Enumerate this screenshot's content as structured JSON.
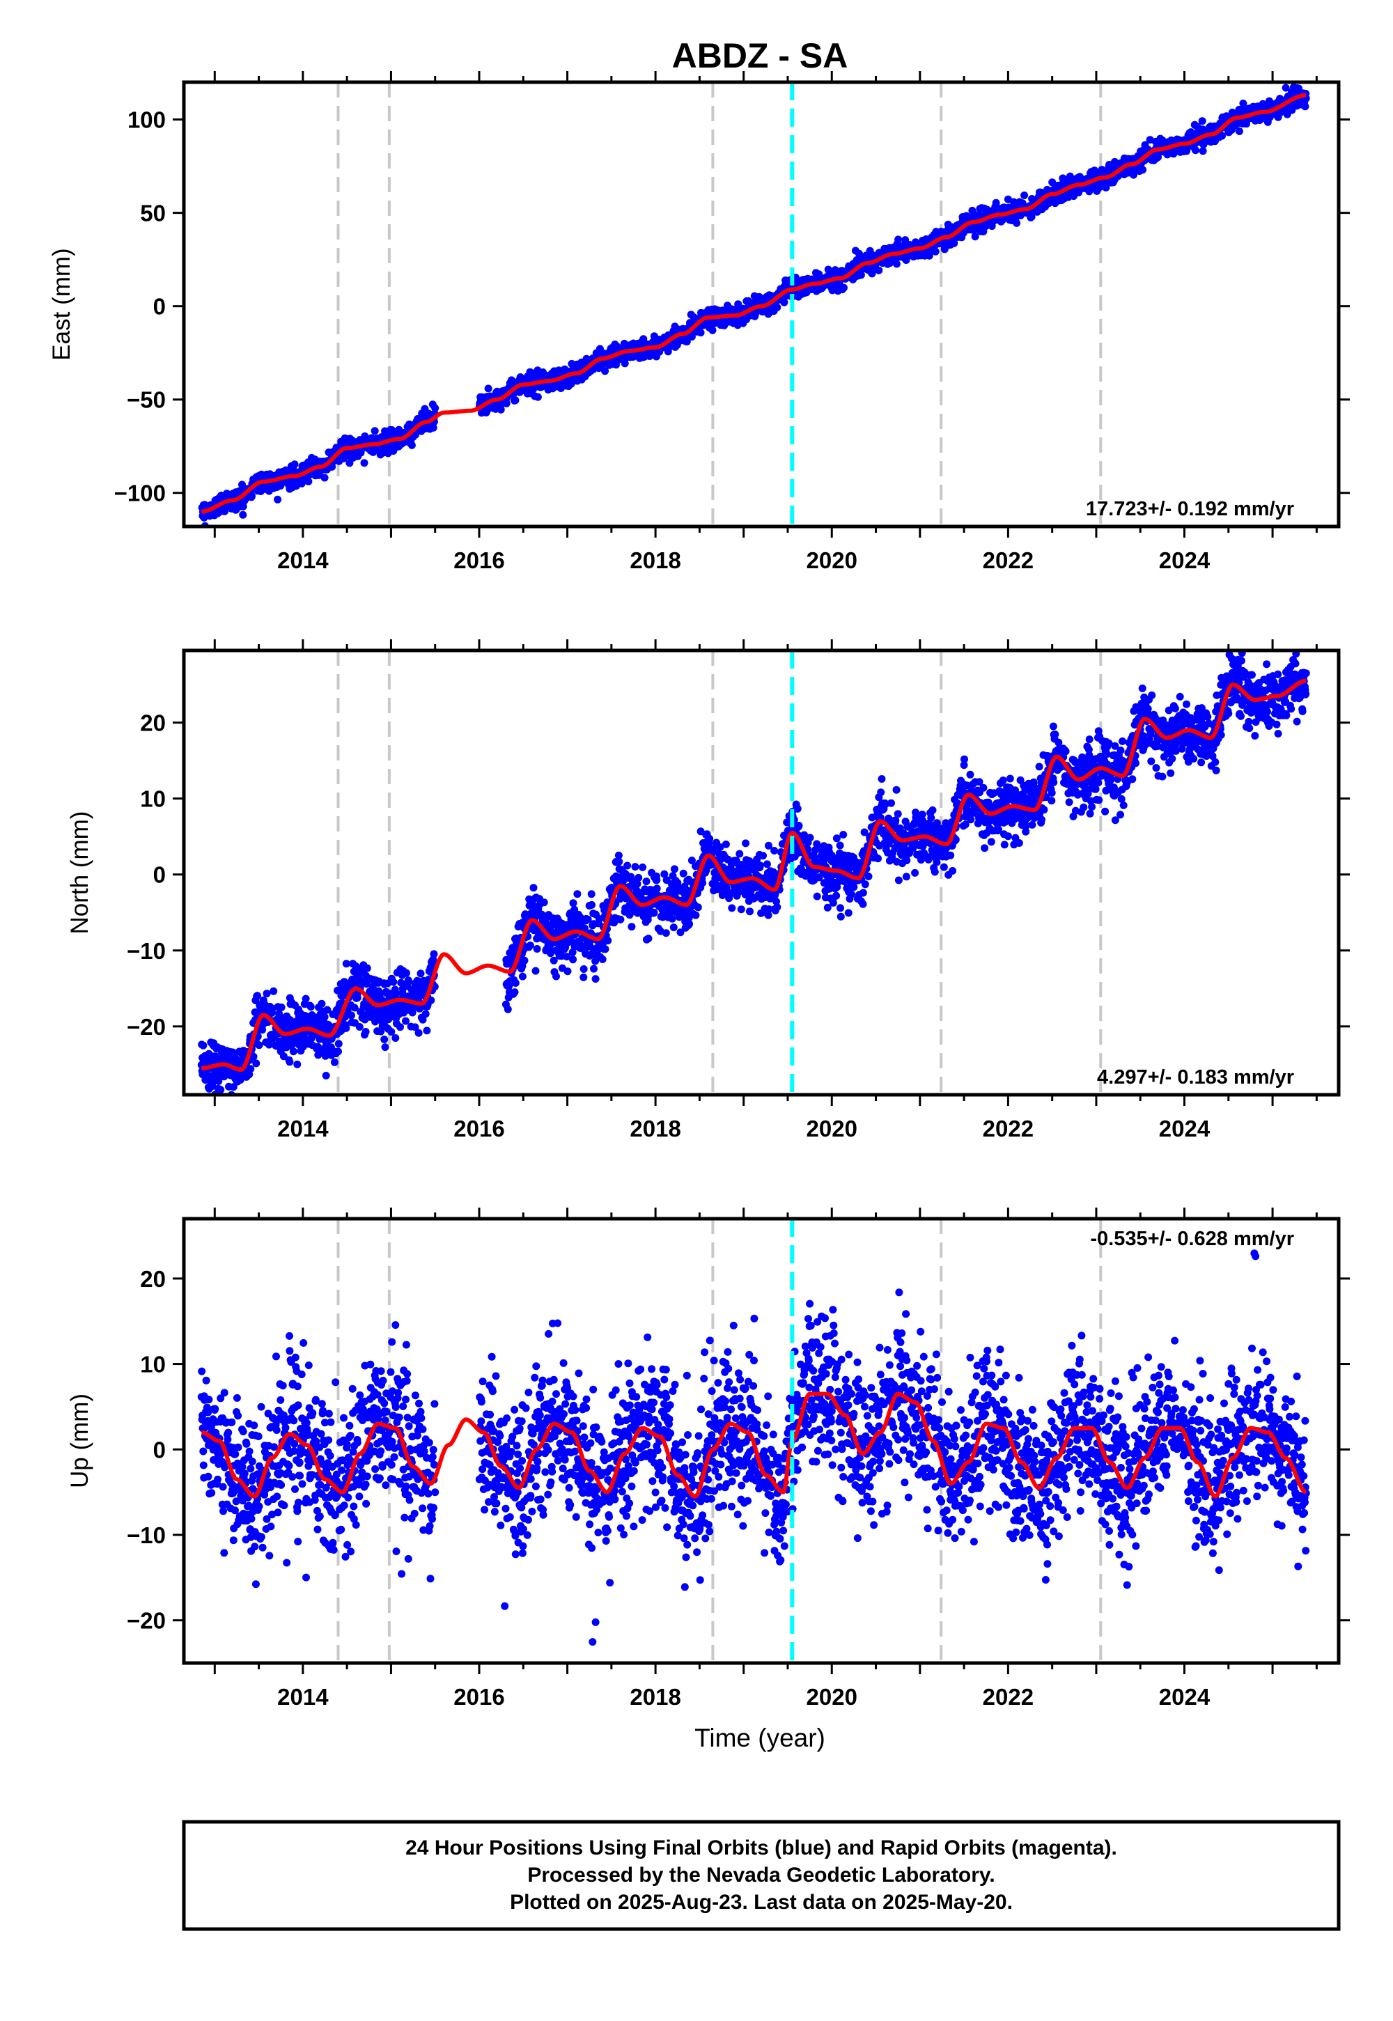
{
  "title": "ABDZ - SA",
  "xlabel": "Time (year)",
  "footer": {
    "line1": "24 Hour Positions Using Final Orbits (blue) and Rapid Orbits (magenta).",
    "line2": "Processed by the Nevada Geodetic Laboratory.",
    "line3": "Plotted on 2025-Aug-23. Last data on 2025-May-20."
  },
  "colors": {
    "points": "#0000ff",
    "model": "#ff0000",
    "event_line": "#c8c8c8",
    "antenna_change_line": "#00ffff",
    "axes": "#000000"
  },
  "chart_data": [
    {
      "type": "scatter",
      "panel": "east",
      "ylabel": "East (mm)",
      "xlim": [
        2012.65,
        2025.75
      ],
      "ylim": [
        -118,
        120
      ],
      "x_ticks": [
        2014,
        2016,
        2018,
        2020,
        2022,
        2024
      ],
      "y_ticks": [
        -100,
        -50,
        0,
        50,
        100
      ],
      "rate_label": "17.723+/- 0.192 mm/yr",
      "rate_position": "bottom-right",
      "event_lines": [
        2014.4,
        2014.98,
        2018.65,
        2021.24,
        2023.05
      ],
      "step_lines": [
        2019.55
      ],
      "series": [
        {
          "role": "model",
          "x": [
            2012.85,
            2013.2,
            2013.55,
            2013.9,
            2014.2,
            2014.5,
            2014.8,
            2015.1,
            2015.4,
            2015.6,
            2015.9,
            2016.2,
            2016.5,
            2016.8,
            2017.1,
            2017.4,
            2017.7,
            2018.0,
            2018.3,
            2018.6,
            2018.9,
            2019.2,
            2019.55,
            2019.8,
            2020.1,
            2020.4,
            2020.7,
            2021.0,
            2021.3,
            2021.6,
            2021.9,
            2022.2,
            2022.5,
            2022.8,
            2023.1,
            2023.4,
            2023.7,
            2024.0,
            2024.3,
            2024.6,
            2024.9,
            2025.38
          ],
          "values": [
            -110,
            -104,
            -94,
            -91,
            -86,
            -76,
            -74,
            -71,
            -62,
            -57,
            -56,
            -50,
            -42,
            -40,
            -36,
            -28,
            -24,
            -22,
            -15,
            -6,
            -5,
            0,
            9,
            12,
            15,
            23,
            28,
            31,
            37,
            45,
            49,
            52,
            60,
            65,
            69,
            76,
            84,
            87,
            92,
            101,
            104,
            113
          ]
        },
        {
          "role": "daily_positions",
          "values": "dense daily scatter of blue points around the red model line, scatter about +/-3 mm, gap 2015.5-2016.0"
        }
      ]
    },
    {
      "type": "scatter",
      "panel": "north",
      "ylabel": "North (mm)",
      "xlim": [
        2012.65,
        2025.75
      ],
      "ylim": [
        -29,
        29.5
      ],
      "x_ticks": [
        2014,
        2016,
        2018,
        2020,
        2022,
        2024
      ],
      "y_ticks": [
        -20,
        -10,
        0,
        10,
        20
      ],
      "rate_label": "4.297+/- 0.183 mm/yr",
      "rate_position": "bottom-right",
      "event_lines": [
        2014.4,
        2014.98,
        2018.65,
        2021.24,
        2023.05
      ],
      "step_lines": [
        2019.55
      ],
      "series": [
        {
          "role": "model",
          "x": [
            2012.85,
            2013.1,
            2013.3,
            2013.55,
            2013.8,
            2014.05,
            2014.3,
            2014.6,
            2014.85,
            2015.1,
            2015.35,
            2015.6,
            2015.85,
            2016.1,
            2016.35,
            2016.6,
            2016.85,
            2017.1,
            2017.35,
            2017.6,
            2017.85,
            2018.1,
            2018.35,
            2018.6,
            2018.85,
            2019.1,
            2019.35,
            2019.55,
            2019.8,
            2020.05,
            2020.3,
            2020.55,
            2020.8,
            2021.05,
            2021.3,
            2021.55,
            2021.8,
            2022.05,
            2022.3,
            2022.55,
            2022.8,
            2023.05,
            2023.3,
            2023.55,
            2023.8,
            2024.05,
            2024.3,
            2024.55,
            2024.8,
            2025.05,
            2025.38
          ],
          "values": [
            -25.5,
            -25.0,
            -25.7,
            -18.5,
            -21.0,
            -20.3,
            -21.2,
            -15.0,
            -17.2,
            -16.5,
            -17.0,
            -10.5,
            -13.0,
            -12.0,
            -12.8,
            -6.0,
            -8.5,
            -7.5,
            -8.5,
            -1.5,
            -4.0,
            -3.0,
            -4.0,
            2.5,
            -1.0,
            -0.5,
            -2.0,
            5.5,
            1.0,
            0.5,
            -0.5,
            7.0,
            4.5,
            5.0,
            4.0,
            10.5,
            8.0,
            9.0,
            8.5,
            15.5,
            12.5,
            14.0,
            13.0,
            20.5,
            18.0,
            19.0,
            18.0,
            25.0,
            23.0,
            23.5,
            25.5
          ]
        },
        {
          "role": "daily_positions",
          "values": "dense daily scatter of blue points around the red model line, scatter about +/-2 mm, gap 2015.5-2016.3"
        }
      ]
    },
    {
      "type": "scatter",
      "panel": "up",
      "ylabel": "Up (mm)",
      "xlim": [
        2012.65,
        2025.75
      ],
      "ylim": [
        -25,
        27
      ],
      "x_ticks": [
        2014,
        2016,
        2018,
        2020,
        2022,
        2024
      ],
      "y_ticks": [
        -20,
        -10,
        0,
        10,
        20
      ],
      "rate_label": "-0.535+/- 0.628 mm/yr",
      "rate_position": "top-right",
      "event_lines": [
        2014.4,
        2014.98,
        2018.65,
        2021.24,
        2023.05
      ],
      "step_lines": [
        2019.55
      ],
      "series": [
        {
          "role": "model",
          "x": [
            2012.85,
            2013.05,
            2013.25,
            2013.45,
            2013.65,
            2013.85,
            2014.05,
            2014.25,
            2014.45,
            2014.65,
            2014.85,
            2015.05,
            2015.25,
            2015.45,
            2015.65,
            2015.85,
            2016.05,
            2016.25,
            2016.45,
            2016.65,
            2016.85,
            2017.05,
            2017.25,
            2017.45,
            2017.65,
            2017.85,
            2018.05,
            2018.25,
            2018.45,
            2018.65,
            2018.85,
            2019.05,
            2019.25,
            2019.45,
            2019.55,
            2019.75,
            2019.95,
            2020.15,
            2020.35,
            2020.55,
            2020.75,
            2020.95,
            2021.15,
            2021.35,
            2021.55,
            2021.75,
            2021.95,
            2022.15,
            2022.35,
            2022.55,
            2022.75,
            2022.95,
            2023.15,
            2023.35,
            2023.55,
            2023.75,
            2023.95,
            2024.15,
            2024.35,
            2024.55,
            2024.75,
            2024.95,
            2025.15,
            2025.38
          ],
          "values": [
            2.0,
            1.0,
            -3.5,
            -5.5,
            -1.0,
            1.8,
            0.5,
            -3.5,
            -5.0,
            -0.5,
            3.0,
            2.5,
            -2.0,
            -4.0,
            0.5,
            3.5,
            2.0,
            -2.0,
            -4.5,
            0.0,
            3.0,
            2.0,
            -2.5,
            -5.0,
            -0.5,
            2.5,
            1.5,
            -3.0,
            -5.5,
            0.0,
            3.0,
            2.0,
            -3.0,
            -5.0,
            1.0,
            6.5,
            6.5,
            4.0,
            -0.5,
            2.0,
            6.5,
            5.5,
            1.0,
            -4.0,
            -1.5,
            3.0,
            2.5,
            -1.5,
            -4.5,
            -1.0,
            2.5,
            2.5,
            -1.5,
            -4.5,
            -1.0,
            2.5,
            2.5,
            -1.5,
            -5.5,
            -1.0,
            2.5,
            2.0,
            -1.0,
            -5.0
          ]
        },
        {
          "role": "daily_positions",
          "values": "dense daily scatter of blue points around the red model line, scatter about +/-5 mm with outliers to about +/-24 mm, gap 2015.5-2016.0"
        }
      ]
    }
  ]
}
